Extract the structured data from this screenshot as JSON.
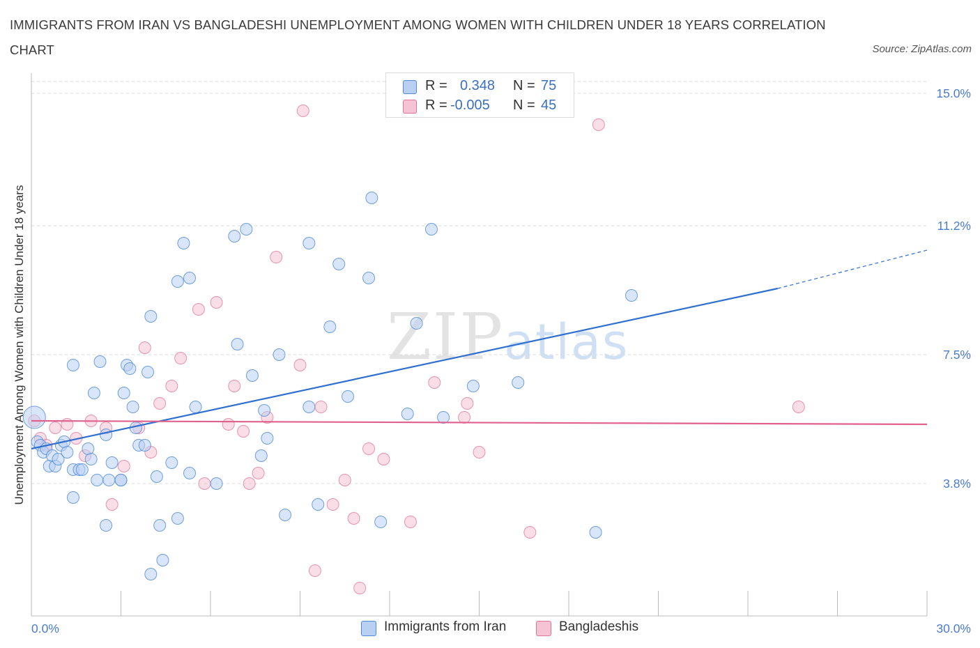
{
  "title": "IMMIGRANTS FROM IRAN VS BANGLADESHI UNEMPLOYMENT AMONG WOMEN WITH CHILDREN UNDER 18 YEARS CORRELATION CHART",
  "source": "Source: ZipAtlas.com",
  "watermark": {
    "zip": "ZIP",
    "atlas": "atlas"
  },
  "colors": {
    "blue": "#4f8ad6",
    "blue_fill": "#b9d0f2",
    "pink": "#e0739a",
    "pink_fill": "#f6c3d4",
    "axis_text": "#4a7cc9",
    "grid": "#d9d9d9"
  },
  "legend": {
    "rows": [
      {
        "r_label": "R =",
        "r_value": "0.348",
        "n_label": "N =",
        "n_value": "75"
      },
      {
        "r_label": "R =",
        "r_value": "-0.005",
        "n_label": "N =",
        "n_value": "45"
      }
    ]
  },
  "bottom_legend": [
    "Immigrants from Iran",
    "Bangladeshis"
  ],
  "chart_data": {
    "type": "scatter",
    "title": "IMMIGRANTS FROM IRAN VS BANGLADESHI UNEMPLOYMENT AMONG WOMEN WITH CHILDREN UNDER 18 YEARS CORRELATION CHART",
    "xlabel": "",
    "ylabel": "Unemployment Among Women with Children Under 18 years",
    "xlim": [
      0,
      30
    ],
    "ylim": [
      0,
      15.3
    ],
    "x_tick_labels": [
      "0.0%",
      "30.0%"
    ],
    "y_ticks": [
      3.8,
      7.5,
      11.2,
      15.0
    ],
    "y_tick_labels": [
      "3.8%",
      "7.5%",
      "11.2%",
      "15.0%"
    ],
    "grid": "horizontal dashed",
    "legend_position": "top-center",
    "series": [
      {
        "name": "Immigrants from Iran",
        "R": 0.348,
        "N": 75,
        "trend": {
          "x": [
            0,
            25
          ],
          "y": [
            4.8,
            9.4
          ],
          "extrapolated_to": [
            30,
            10.5
          ]
        },
        "points": [
          [
            0.1,
            5.7
          ],
          [
            0.2,
            5.0
          ],
          [
            0.3,
            4.9
          ],
          [
            0.4,
            4.7
          ],
          [
            0.5,
            4.8
          ],
          [
            0.6,
            4.3
          ],
          [
            0.7,
            4.6
          ],
          [
            0.8,
            4.3
          ],
          [
            0.9,
            4.5
          ],
          [
            1.0,
            4.9
          ],
          [
            1.1,
            5.0
          ],
          [
            1.2,
            4.7
          ],
          [
            1.4,
            4.2
          ],
          [
            1.6,
            4.2
          ],
          [
            1.7,
            4.2
          ],
          [
            1.9,
            4.8
          ],
          [
            2.0,
            4.5
          ],
          [
            1.4,
            3.4
          ],
          [
            1.4,
            7.2
          ],
          [
            2.1,
            6.4
          ],
          [
            2.3,
            7.3
          ],
          [
            2.5,
            5.2
          ],
          [
            2.2,
            3.9
          ],
          [
            2.6,
            3.9
          ],
          [
            2.7,
            4.4
          ],
          [
            2.5,
            2.6
          ],
          [
            3.0,
            3.9
          ],
          [
            3.0,
            3.9
          ],
          [
            3.1,
            6.4
          ],
          [
            3.2,
            7.2
          ],
          [
            3.3,
            7.1
          ],
          [
            3.4,
            6.0
          ],
          [
            3.5,
            5.4
          ],
          [
            3.6,
            4.9
          ],
          [
            3.8,
            4.9
          ],
          [
            3.9,
            7.0
          ],
          [
            4.0,
            8.6
          ],
          [
            4.0,
            1.2
          ],
          [
            4.2,
            4.0
          ],
          [
            4.3,
            2.6
          ],
          [
            4.4,
            1.6
          ],
          [
            4.7,
            4.4
          ],
          [
            4.9,
            2.8
          ],
          [
            4.9,
            9.6
          ],
          [
            5.1,
            10.7
          ],
          [
            5.3,
            9.7
          ],
          [
            5.3,
            4.1
          ],
          [
            5.5,
            6.0
          ],
          [
            6.2,
            3.8
          ],
          [
            6.8,
            10.9
          ],
          [
            6.9,
            7.8
          ],
          [
            7.2,
            11.1
          ],
          [
            7.4,
            6.9
          ],
          [
            7.7,
            4.6
          ],
          [
            7.8,
            5.9
          ],
          [
            7.9,
            5.1
          ],
          [
            8.3,
            7.5
          ],
          [
            8.5,
            2.9
          ],
          [
            9.3,
            10.7
          ],
          [
            9.3,
            6.0
          ],
          [
            9.6,
            3.2
          ],
          [
            10.0,
            8.3
          ],
          [
            10.3,
            10.1
          ],
          [
            10.6,
            6.3
          ],
          [
            11.3,
            9.7
          ],
          [
            11.4,
            12.0
          ],
          [
            11.7,
            2.7
          ],
          [
            12.6,
            5.8
          ],
          [
            12.9,
            8.4
          ],
          [
            13.4,
            11.1
          ],
          [
            13.8,
            5.7
          ],
          [
            14.8,
            6.6
          ],
          [
            16.3,
            6.7
          ],
          [
            20.1,
            9.2
          ],
          [
            18.9,
            2.4
          ]
        ]
      },
      {
        "name": "Bangladeshis",
        "R": -0.005,
        "N": 45,
        "trend": {
          "x": [
            0,
            30
          ],
          "y": [
            5.6,
            5.5
          ]
        },
        "points": [
          [
            0.1,
            5.6
          ],
          [
            0.3,
            5.1
          ],
          [
            0.5,
            4.9
          ],
          [
            0.8,
            5.4
          ],
          [
            1.2,
            5.5
          ],
          [
            1.5,
            5.1
          ],
          [
            1.8,
            4.6
          ],
          [
            2.0,
            5.6
          ],
          [
            2.5,
            5.4
          ],
          [
            2.7,
            3.2
          ],
          [
            3.1,
            4.3
          ],
          [
            3.6,
            5.4
          ],
          [
            3.8,
            7.7
          ],
          [
            4.0,
            4.7
          ],
          [
            4.3,
            6.1
          ],
          [
            4.7,
            6.6
          ],
          [
            5.0,
            7.4
          ],
          [
            5.6,
            8.8
          ],
          [
            5.8,
            3.8
          ],
          [
            6.2,
            9.0
          ],
          [
            6.6,
            5.5
          ],
          [
            6.8,
            6.6
          ],
          [
            7.1,
            5.3
          ],
          [
            7.3,
            3.8
          ],
          [
            7.6,
            4.1
          ],
          [
            7.9,
            5.7
          ],
          [
            8.2,
            10.3
          ],
          [
            9.0,
            7.2
          ],
          [
            9.1,
            14.5
          ],
          [
            9.5,
            1.3
          ],
          [
            9.7,
            6.0
          ],
          [
            10.1,
            3.2
          ],
          [
            10.5,
            3.9
          ],
          [
            10.8,
            2.8
          ],
          [
            11.0,
            0.8
          ],
          [
            11.3,
            4.8
          ],
          [
            11.8,
            4.5
          ],
          [
            12.7,
            2.7
          ],
          [
            13.5,
            6.7
          ],
          [
            14.5,
            5.7
          ],
          [
            14.6,
            6.1
          ],
          [
            15.0,
            4.7
          ],
          [
            16.7,
            2.4
          ],
          [
            19.0,
            14.1
          ],
          [
            25.7,
            6.0
          ]
        ]
      }
    ]
  }
}
